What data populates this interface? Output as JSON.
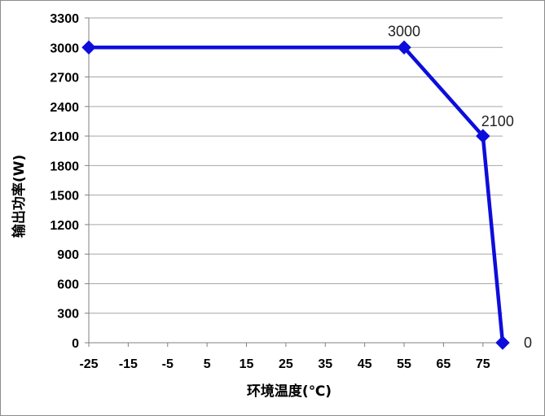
{
  "chart_data": {
    "type": "line",
    "title": "",
    "xlabel": "环境温度(℃)",
    "ylabel": "输出功率(W)",
    "x_ticks": [
      "-25",
      "-15",
      "-5",
      "5",
      "15",
      "25",
      "35",
      "45",
      "55",
      "65",
      "75"
    ],
    "y_ticks": [
      "0",
      "300",
      "600",
      "900",
      "1200",
      "1500",
      "1800",
      "2100",
      "2400",
      "2700",
      "3000",
      "3300"
    ],
    "xlim": [
      -25,
      80
    ],
    "ylim": [
      0,
      3300
    ],
    "grid": "horizontal",
    "legend": "none",
    "series": [
      {
        "color": "#0d0ddb",
        "marker": "diamond",
        "x": [
          -25,
          55,
          75,
          80
        ],
        "y": [
          3000,
          3000,
          2100,
          0
        ],
        "data_labels": [
          "",
          "3000",
          "2100",
          "0"
        ]
      }
    ]
  }
}
